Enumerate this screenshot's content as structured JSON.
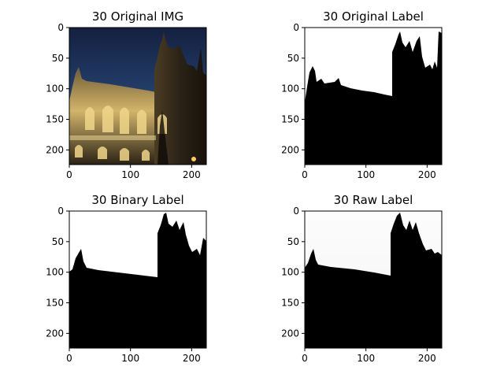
{
  "chart_data": [
    {
      "type": "image",
      "title": "30 Original IMG",
      "content": "photograph of a gothic cathedral facade at night against a dark blue sky",
      "x_ticks": [
        "0",
        "100",
        "200"
      ],
      "y_ticks": [
        "0",
        "50",
        "100",
        "150",
        "200"
      ],
      "xlim": [
        0,
        224
      ],
      "ylim": [
        224,
        0
      ]
    },
    {
      "type": "image",
      "title": "30 Original Label",
      "content": "binary mask: white sky, black building silhouette",
      "x_ticks": [
        "0",
        "100",
        "200"
      ],
      "y_ticks": [
        "0",
        "50",
        "100",
        "150",
        "200"
      ],
      "xlim": [
        0,
        224
      ],
      "ylim": [
        224,
        0
      ]
    },
    {
      "type": "image",
      "title": "30 Binary Label",
      "content": "binary mask: white sky, black building silhouette",
      "x_ticks": [
        "0",
        "100",
        "200"
      ],
      "y_ticks": [
        "0",
        "50",
        "100",
        "150",
        "200"
      ],
      "xlim": [
        0,
        224
      ],
      "ylim": [
        224,
        0
      ]
    },
    {
      "type": "image",
      "title": "30 Raw Label",
      "content": "predicted mask: near-white sky, black building silhouette with soft edges",
      "x_ticks": [
        "0",
        "100",
        "200"
      ],
      "y_ticks": [
        "0",
        "50",
        "100",
        "150",
        "200"
      ],
      "xlim": [
        0,
        224
      ],
      "ylim": [
        224,
        0
      ]
    }
  ],
  "colors": {
    "sky": "#1b2a4e",
    "sky_light": "#2f4a7a",
    "stone": "#c9a85a",
    "stone_dark": "#3a2e1a",
    "mask_black": "#000000",
    "mask_white": "#ffffff",
    "raw_white": "#fafafa"
  }
}
